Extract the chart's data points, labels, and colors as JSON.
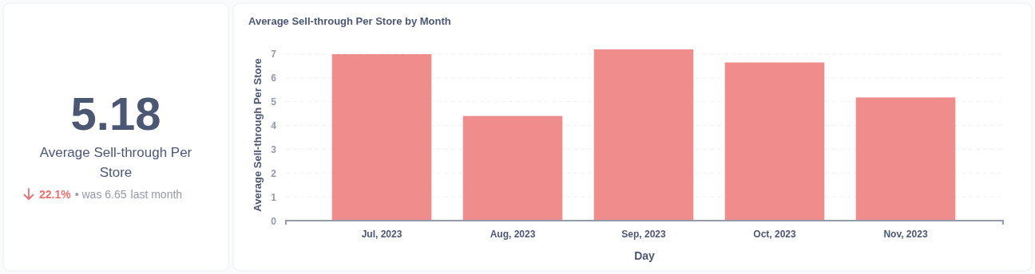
{
  "chart_data": [
    {
      "type": "other",
      "title": "5.18",
      "subtitle": "Average Sell-through Per Store",
      "annotations": [
        "22.1%",
        "• was 6.65",
        "last month"
      ]
    },
    {
      "type": "bar",
      "title": "Average Sell-through Per Store by Month",
      "xlabel": "Day",
      "ylabel": "Average Sell-through Per Store",
      "categories": [
        "Jul, 2023",
        "Aug, 2023",
        "Sep, 2023",
        "Oct, 2023",
        "Nov, 2023"
      ],
      "values": [
        7.0,
        4.4,
        7.2,
        6.65,
        5.18
      ],
      "color": "#ef8c8c",
      "ylim": [
        0,
        7.2
      ],
      "yticks": [
        0,
        1,
        2,
        3,
        4,
        5,
        6,
        7
      ],
      "grid": "y"
    }
  ]
}
